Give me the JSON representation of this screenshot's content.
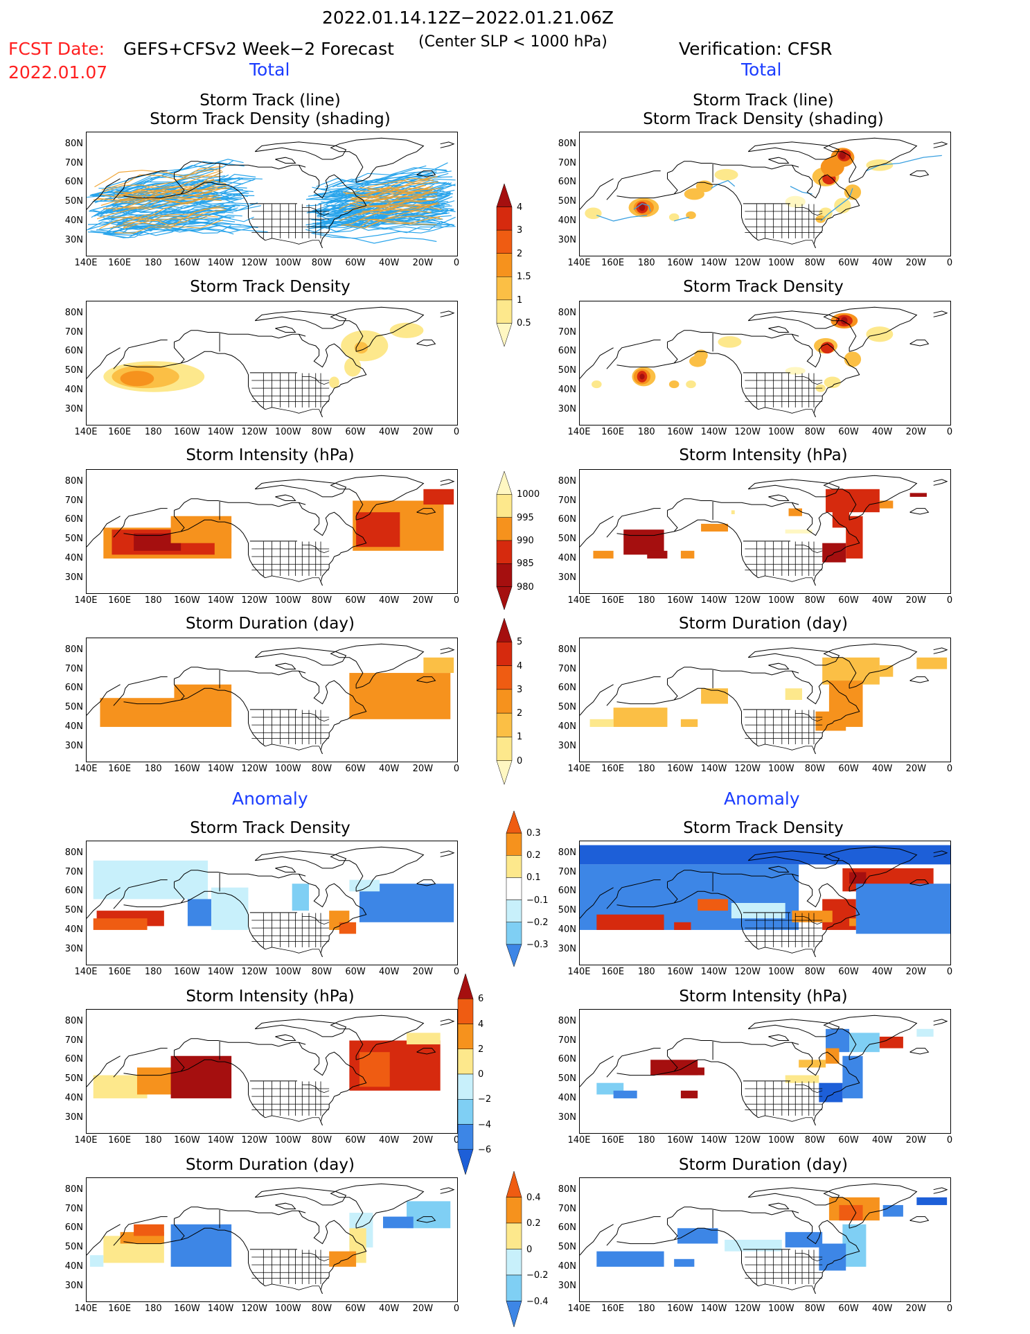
{
  "header": {
    "period": "2022.01.14.12Z−2022.01.21.06Z",
    "fcst_prefix": "FCST Date:",
    "fcst_date": "2022.01.07",
    "model": "GEFS+CFSv2 Week−2 Forecast",
    "condition": "(Center SLP < 1000 hPa)",
    "verification": "Verification: CFSR"
  },
  "sections": {
    "total": "Total",
    "anomaly": "Anomaly"
  },
  "axes": {
    "lat_labels": [
      "80N",
      "70N",
      "60N",
      "50N",
      "40N",
      "30N"
    ],
    "lon_labels": [
      "140E",
      "160E",
      "180",
      "160W",
      "140W",
      "120W",
      "100W",
      "80W",
      "60W",
      "40W",
      "20W",
      "0"
    ]
  },
  "panel_titles": {
    "track_line": "Storm Track (line)",
    "track_shading": "Storm Track Density (shading)",
    "density": "Storm Track Density",
    "intensity": "Storm Intensity (hPa)",
    "duration": "Storm Duration (day)"
  },
  "colorbars": {
    "total_density": [
      "4",
      "3",
      "2",
      "1.5",
      "1",
      "0.5"
    ],
    "total_intensity": [
      "1000",
      "995",
      "990",
      "985",
      "980"
    ],
    "total_duration": [
      "5",
      "4",
      "3",
      "2",
      "1",
      "0"
    ],
    "anom_density": [
      "0.3",
      "0.2",
      "0.1",
      "−0.1",
      "−0.2",
      "−0.3"
    ],
    "anom_intensity": [
      "6",
      "4",
      "2",
      "0",
      "−2",
      "−4",
      "−6"
    ],
    "anom_duration": [
      "0.4",
      "0.2",
      "0",
      "−0.2",
      "−0.4"
    ]
  },
  "colors": {
    "dark_red": "#a50f0f",
    "red": "#d62a0e",
    "orange_red": "#ef5c12",
    "orange": "#f6921d",
    "light_orange": "#fbbf45",
    "yellow": "#fde88c",
    "pale_yellow": "#fff7c2",
    "light_blue": "#c8f0fb",
    "mid_blue": "#7fcff4",
    "blue": "#3d86e6",
    "dark_blue": "#1d5fd8",
    "track_blue": "#1ea0ea",
    "track_orange": "#f0a330"
  }
}
